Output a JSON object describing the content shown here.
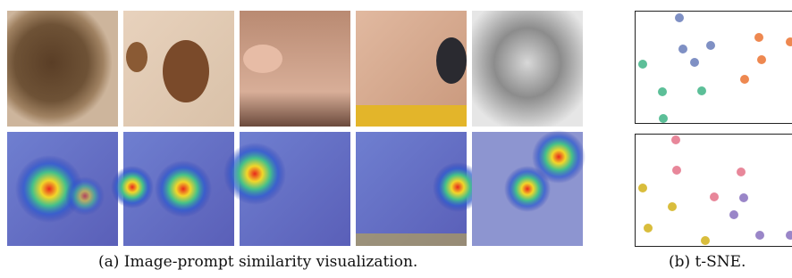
{
  "captions": {
    "a": "(a) Image-prompt similarity visualization.",
    "b": "(b) t-SNE."
  }
}
